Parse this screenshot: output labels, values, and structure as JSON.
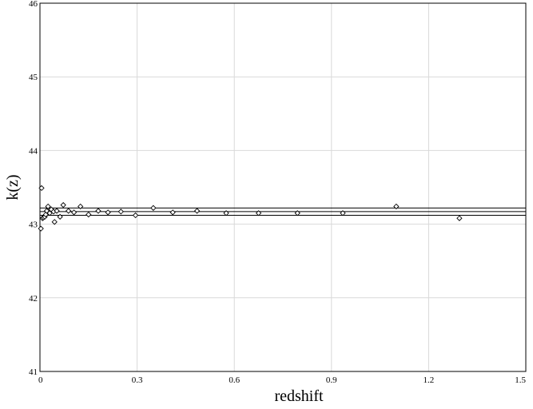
{
  "chart_data": {
    "type": "scatter",
    "xlabel": "redshift",
    "ylabel": "k(z)",
    "xlim": [
      0,
      1.5
    ],
    "ylim": [
      41,
      46
    ],
    "xticks": [
      0,
      0.3,
      0.6,
      0.9,
      1.2,
      1.5
    ],
    "xtick_labels": [
      "0",
      "0.3",
      "0.6",
      "0.9",
      "1.2",
      "1.5"
    ],
    "yticks": [
      41,
      42,
      43,
      44,
      45,
      46
    ],
    "ytick_labels": [
      "41",
      "42",
      "43",
      "44",
      "45",
      "46"
    ],
    "grid": true,
    "marker": "diamond-open",
    "hlines": [
      43.22,
      43.17,
      43.12
    ],
    "points": [
      {
        "x": 0.003,
        "y": 42.94
      },
      {
        "x": 0.005,
        "y": 43.49
      },
      {
        "x": 0.008,
        "y": 43.08
      },
      {
        "x": 0.011,
        "y": 43.09
      },
      {
        "x": 0.015,
        "y": 43.1
      },
      {
        "x": 0.018,
        "y": 43.13
      },
      {
        "x": 0.021,
        "y": 43.18
      },
      {
        "x": 0.025,
        "y": 43.24
      },
      {
        "x": 0.03,
        "y": 43.15
      },
      {
        "x": 0.035,
        "y": 43.2
      },
      {
        "x": 0.042,
        "y": 43.17
      },
      {
        "x": 0.045,
        "y": 43.03
      },
      {
        "x": 0.052,
        "y": 43.18
      },
      {
        "x": 0.062,
        "y": 43.1
      },
      {
        "x": 0.072,
        "y": 43.26
      },
      {
        "x": 0.088,
        "y": 43.18
      },
      {
        "x": 0.105,
        "y": 43.16
      },
      {
        "x": 0.125,
        "y": 43.24
      },
      {
        "x": 0.15,
        "y": 43.13
      },
      {
        "x": 0.18,
        "y": 43.18
      },
      {
        "x": 0.21,
        "y": 43.16
      },
      {
        "x": 0.25,
        "y": 43.17
      },
      {
        "x": 0.295,
        "y": 43.12
      },
      {
        "x": 0.35,
        "y": 43.22
      },
      {
        "x": 0.41,
        "y": 43.16
      },
      {
        "x": 0.485,
        "y": 43.18
      },
      {
        "x": 0.575,
        "y": 43.15
      },
      {
        "x": 0.675,
        "y": 43.15
      },
      {
        "x": 0.795,
        "y": 43.15
      },
      {
        "x": 0.935,
        "y": 43.15
      },
      {
        "x": 1.1,
        "y": 43.24
      },
      {
        "x": 1.295,
        "y": 43.08
      }
    ]
  }
}
